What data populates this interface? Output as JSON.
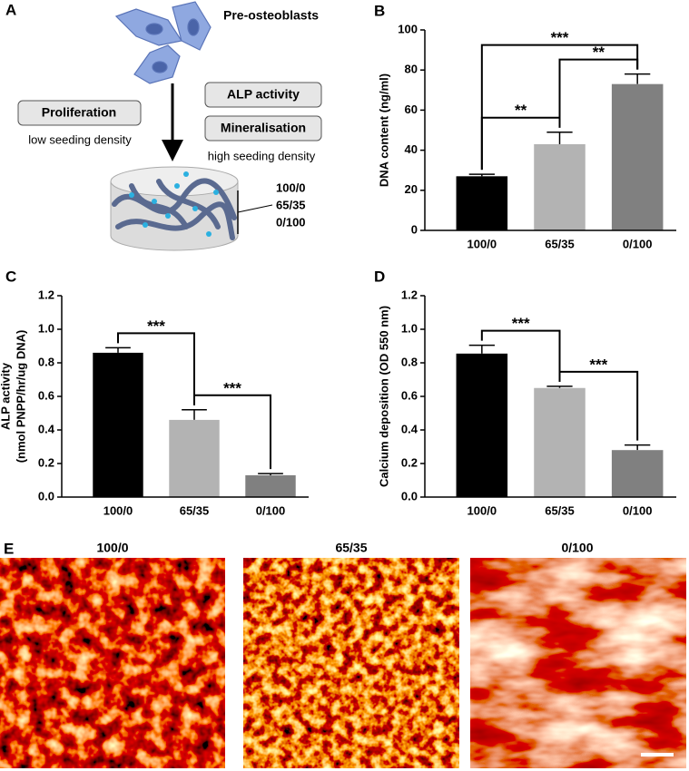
{
  "diagram": {
    "panel_label": "A",
    "cells_label": "Pre-osteoblasts",
    "boxes": [
      "ALP activity",
      "Mineralisation",
      "Proliferation"
    ],
    "low_density": "low seeding density",
    "high_density": "high seeding density",
    "ratios": [
      "100/0",
      "65/35",
      "0/100"
    ]
  },
  "chart_data": [
    {
      "type": "bar",
      "panel_label": "B",
      "ylabel": [
        "DNA content (ng/ml)"
      ],
      "categories": [
        "100/0",
        "65/35",
        "0/100"
      ],
      "values": [
        27,
        43,
        73
      ],
      "errors": [
        1,
        6,
        5
      ],
      "colors": [
        "#000000",
        "#b3b3b3",
        "#808080"
      ],
      "ylim": [
        0,
        100
      ],
      "yticks": [
        0,
        20,
        40,
        60,
        80,
        100
      ],
      "significance": [
        {
          "pair": [
            0,
            1
          ],
          "label": "**"
        },
        {
          "pair": [
            1,
            2
          ],
          "label": "**"
        },
        {
          "pair": [
            0,
            2
          ],
          "label": "***"
        }
      ]
    },
    {
      "type": "bar",
      "panel_label": "C",
      "ylabel": [
        "ALP activity",
        "(nmol PNPP/hr/ug DNA)"
      ],
      "categories": [
        "100/0",
        "65/35",
        "0/100"
      ],
      "values": [
        0.86,
        0.46,
        0.13
      ],
      "errors": [
        0.03,
        0.06,
        0.01
      ],
      "colors": [
        "#000000",
        "#b3b3b3",
        "#808080"
      ],
      "ylim": [
        0,
        1.2
      ],
      "yticks": [
        {
          "value": 0,
          "label": "0.0"
        },
        0.2,
        0.4,
        0.6,
        0.8,
        {
          "value": 1,
          "label": "1.0"
        },
        1.2
      ],
      "significance": [
        {
          "pair": [
            0,
            1
          ],
          "label": "***"
        },
        {
          "pair": [
            1,
            2
          ],
          "label": "***"
        }
      ]
    },
    {
      "type": "bar",
      "panel_label": "D",
      "ylabel": [
        "Calcium deposition (OD 550 nm)"
      ],
      "categories": [
        "100/0",
        "65/35",
        "0/100"
      ],
      "values": [
        0.855,
        0.65,
        0.28
      ],
      "errors": [
        0.05,
        0.01,
        0.03
      ],
      "colors": [
        "#000000",
        "#b3b3b3",
        "#808080"
      ],
      "ylim": [
        0,
        1.2
      ],
      "yticks": [
        {
          "value": 0,
          "label": "0.0"
        },
        0.2,
        0.4,
        0.6,
        0.8,
        {
          "value": 1,
          "label": "1.0"
        },
        1.2
      ],
      "significance": [
        {
          "pair": [
            0,
            1
          ],
          "label": "***"
        },
        {
          "pair": [
            1,
            2
          ],
          "label": "***"
        }
      ]
    }
  ],
  "images": {
    "panel_label": "E",
    "labels": [
      "100/0",
      "65/35",
      "0/100"
    ]
  }
}
